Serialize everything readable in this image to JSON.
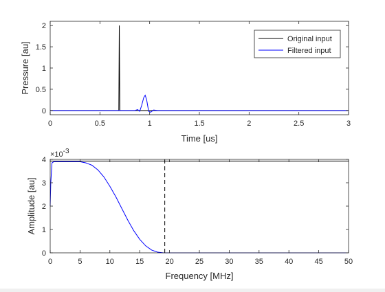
{
  "chart_data": [
    {
      "type": "line",
      "xlabel": "Time [us]",
      "ylabel": "Pressure [au]",
      "xlim": [
        0,
        3
      ],
      "ylim": [
        -0.1,
        2.1
      ],
      "xticks": [
        "0",
        "0.5",
        "1",
        "1.5",
        "2",
        "2.5",
        "3"
      ],
      "yticks": [
        "0",
        "0.5",
        "1",
        "1.5",
        "2"
      ],
      "legend_position": "top-right",
      "series": [
        {
          "name": "Original input",
          "color": "#000000",
          "x": [
            0,
            0.69,
            0.695,
            0.7,
            0.705,
            3
          ],
          "y": [
            0,
            0,
            2.0,
            0,
            0,
            0
          ]
        },
        {
          "name": "Filtered input",
          "color": "#0000ff",
          "x": [
            0,
            0.85,
            0.88,
            0.9,
            0.92,
            0.94,
            0.955,
            0.97,
            0.99,
            1.01,
            1.04,
            1.08,
            3
          ],
          "y": [
            0,
            0,
            0.02,
            -0.02,
            0.12,
            0.3,
            0.36,
            0.25,
            -0.02,
            -0.04,
            0.01,
            0,
            0
          ]
        }
      ]
    },
    {
      "type": "line",
      "xlabel": "Frequency [MHz]",
      "ylabel": "Amplitude [au]",
      "xlim": [
        0,
        50
      ],
      "ylim": [
        0,
        4
      ],
      "y_exponent": "×10",
      "y_exponent_power": "-3",
      "xticks": [
        "0",
        "5",
        "10",
        "15",
        "20",
        "25",
        "30",
        "35",
        "40",
        "45",
        "50"
      ],
      "yticks": [
        "0",
        "1",
        "2",
        "3",
        "4"
      ],
      "series": [
        {
          "color": "#0000ff",
          "x": [
            0,
            0.1,
            0.3,
            0.6,
            1,
            5,
            6,
            7,
            8,
            9,
            10,
            11,
            12,
            13,
            14,
            15,
            16,
            17,
            18,
            19,
            20,
            50
          ],
          "y": [
            2.0,
            3.0,
            3.85,
            3.9,
            3.9,
            3.9,
            3.85,
            3.75,
            3.55,
            3.25,
            2.85,
            2.4,
            1.9,
            1.4,
            0.95,
            0.58,
            0.3,
            0.12,
            0.03,
            0.0,
            0.0,
            0.0
          ]
        },
        {
          "color": "#000000",
          "x": [
            0,
            50
          ],
          "y": [
            3.93,
            3.93
          ]
        }
      ],
      "vline": {
        "x": 19.2,
        "color": "#000000",
        "style": "dashed"
      }
    }
  ]
}
